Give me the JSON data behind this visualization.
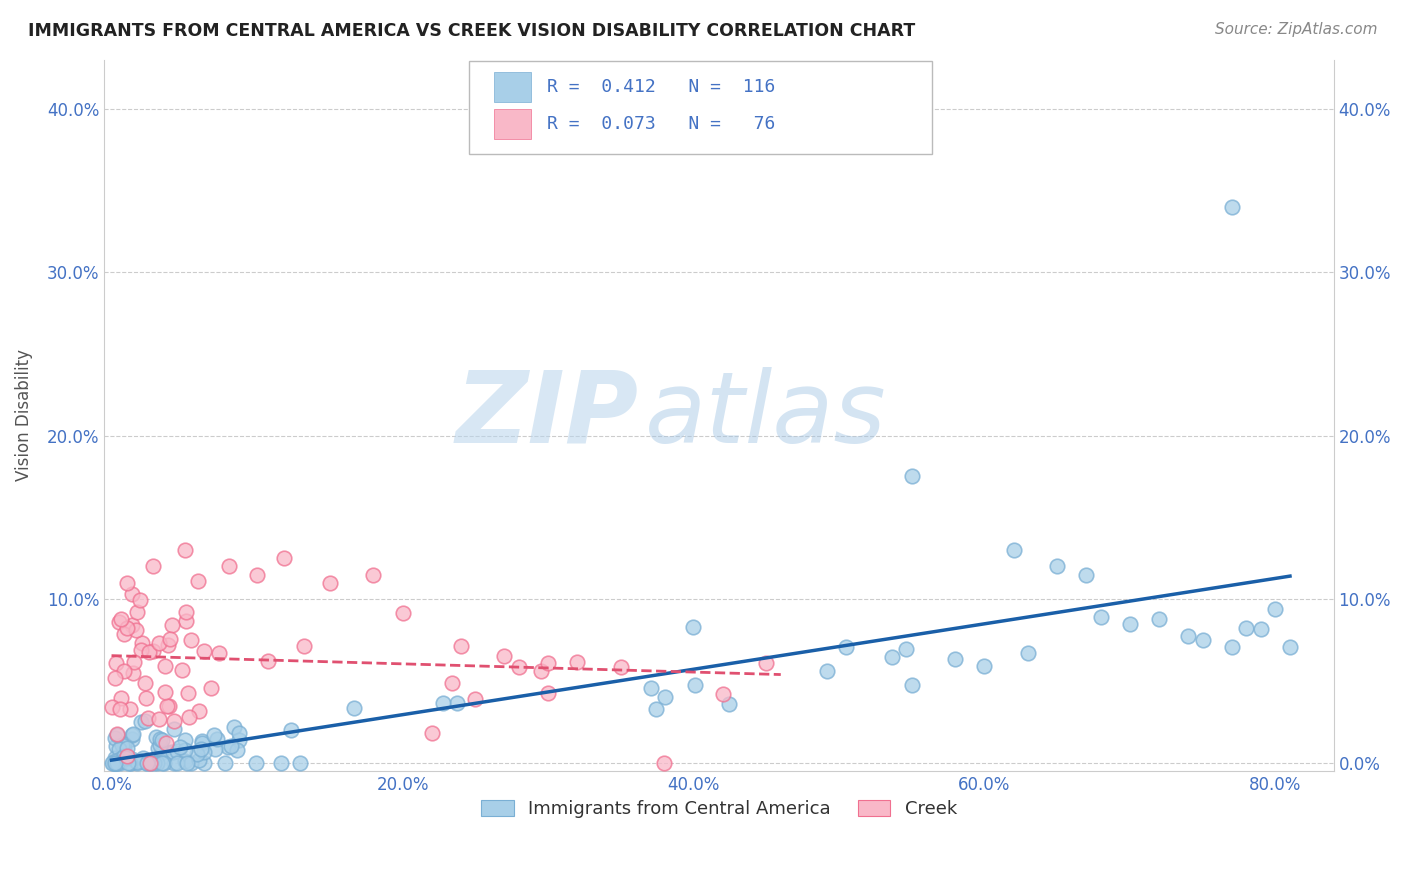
{
  "title": "IMMIGRANTS FROM CENTRAL AMERICA VS CREEK VISION DISABILITY CORRELATION CHART",
  "source": "Source: ZipAtlas.com",
  "ylabel": "Vision Disability",
  "legend_label1": "Immigrants from Central America",
  "legend_label2": "Creek",
  "R1": 0.412,
  "N1": 116,
  "R2": 0.073,
  "N2": 76,
  "color_blue": "#a8cfe8",
  "color_blue_edge": "#7aafd4",
  "color_pink": "#f9b8c8",
  "color_pink_edge": "#f07090",
  "color_line_blue": "#1a5fa8",
  "color_line_pink": "#e05070",
  "watermark_color": "#c8dff0",
  "grid_color": "#cccccc",
  "tick_color": "#4472c4",
  "title_color": "#222222",
  "source_color": "#888888",
  "xlim": [
    -0.005,
    0.84
  ],
  "ylim": [
    -0.005,
    0.43
  ],
  "xticks": [
    0.0,
    0.2,
    0.4,
    0.6,
    0.8
  ],
  "yticks": [
    0.0,
    0.1,
    0.2,
    0.3,
    0.4
  ],
  "seed": 17
}
